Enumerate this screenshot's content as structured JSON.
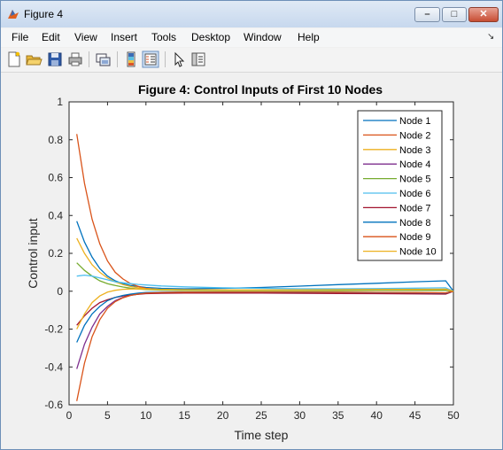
{
  "window": {
    "title": "Figure 4"
  },
  "menu": [
    "File",
    "Edit",
    "View",
    "Insert",
    "Tools",
    "Desktop",
    "Window",
    "Help"
  ],
  "toolbar_icons": [
    "new-figure-icon",
    "open-file-icon",
    "save-icon",
    "print-icon",
    "link-plot-icon",
    "insert-colorbar-icon",
    "insert-legend-icon",
    "edit-plot-pointer-icon",
    "property-inspector-icon"
  ],
  "chart_data": {
    "type": "line",
    "title": "Figure 4: Control Inputs of First 10 Nodes",
    "xlabel": "Time step",
    "ylabel": "Control input",
    "xlim": [
      0,
      50
    ],
    "ylim": [
      -0.6,
      1
    ],
    "xticks": [
      "0",
      "5",
      "10",
      "15",
      "20",
      "25",
      "30",
      "35",
      "40",
      "45",
      "50"
    ],
    "yticks": [
      "-0.6",
      "-0.4",
      "-0.2",
      "0",
      "0.2",
      "0.4",
      "0.6",
      "0.8",
      "1"
    ],
    "grid": false,
    "legend_position": "top-right",
    "x": [
      1,
      2,
      3,
      4,
      5,
      6,
      7,
      8,
      9,
      10,
      12,
      15,
      20,
      25,
      30,
      35,
      40,
      45,
      49,
      50
    ],
    "series": [
      {
        "name": "Node 1",
        "color": "#0072bd",
        "values": [
          0.37,
          0.26,
          0.18,
          0.12,
          0.08,
          0.055,
          0.04,
          0.03,
          0.025,
          0.02,
          0.015,
          0.013,
          0.015,
          0.02,
          0.027,
          0.035,
          0.042,
          0.05,
          0.055,
          0.0
        ]
      },
      {
        "name": "Node 2",
        "color": "#d95319",
        "values": [
          0.83,
          0.57,
          0.38,
          0.25,
          0.16,
          0.1,
          0.065,
          0.04,
          0.025,
          0.015,
          0.008,
          0.005,
          0.004,
          0.004,
          0.004,
          0.005,
          0.006,
          0.008,
          0.01,
          0.0
        ]
      },
      {
        "name": "Node 3",
        "color": "#edb120",
        "values": [
          0.28,
          0.2,
          0.14,
          0.1,
          0.07,
          0.05,
          0.035,
          0.025,
          0.018,
          0.013,
          0.009,
          0.007,
          0.006,
          0.006,
          0.006,
          0.007,
          0.007,
          0.008,
          0.009,
          0.0
        ]
      },
      {
        "name": "Node 4",
        "color": "#7e2f8e",
        "values": [
          -0.41,
          -0.28,
          -0.19,
          -0.12,
          -0.08,
          -0.05,
          -0.033,
          -0.022,
          -0.015,
          -0.01,
          -0.007,
          -0.005,
          -0.005,
          -0.005,
          -0.006,
          -0.007,
          -0.008,
          -0.009,
          -0.01,
          0.0
        ]
      },
      {
        "name": "Node 5",
        "color": "#77ac30",
        "values": [
          0.15,
          0.11,
          0.08,
          0.055,
          0.04,
          0.03,
          0.022,
          0.016,
          0.012,
          0.009,
          0.006,
          0.004,
          0.003,
          0.003,
          0.003,
          0.003,
          0.004,
          0.004,
          0.005,
          0.0
        ]
      },
      {
        "name": "Node 6",
        "color": "#4dbeee",
        "values": [
          0.08,
          0.085,
          0.08,
          0.07,
          0.06,
          0.05,
          0.045,
          0.04,
          0.036,
          0.033,
          0.028,
          0.023,
          0.018,
          0.015,
          0.013,
          0.013,
          0.014,
          0.016,
          0.018,
          0.0
        ]
      },
      {
        "name": "Node 7",
        "color": "#a2142f",
        "values": [
          -0.18,
          -0.13,
          -0.09,
          -0.06,
          -0.045,
          -0.033,
          -0.025,
          -0.02,
          -0.016,
          -0.013,
          -0.011,
          -0.01,
          -0.01,
          -0.01,
          -0.011,
          -0.012,
          -0.013,
          -0.014,
          -0.015,
          0.0
        ]
      },
      {
        "name": "Node 8",
        "color": "#0072bd",
        "values": [
          -0.27,
          -0.18,
          -0.12,
          -0.08,
          -0.05,
          -0.033,
          -0.022,
          -0.015,
          -0.01,
          -0.007,
          -0.005,
          -0.004,
          -0.004,
          -0.004,
          -0.005,
          -0.006,
          -0.007,
          -0.008,
          -0.009,
          0.0
        ]
      },
      {
        "name": "Node 9",
        "color": "#d95319",
        "values": [
          -0.58,
          -0.38,
          -0.24,
          -0.15,
          -0.09,
          -0.055,
          -0.035,
          -0.022,
          -0.015,
          -0.01,
          -0.007,
          -0.005,
          -0.004,
          -0.004,
          -0.004,
          -0.005,
          -0.006,
          -0.007,
          -0.008,
          0.0
        ]
      },
      {
        "name": "Node 10",
        "color": "#edb120",
        "values": [
          -0.2,
          -0.12,
          -0.06,
          -0.025,
          -0.005,
          0.005,
          0.01,
          0.012,
          0.012,
          0.011,
          0.01,
          0.008,
          0.007,
          0.007,
          0.007,
          0.008,
          0.009,
          0.01,
          0.011,
          0.0
        ]
      }
    ]
  }
}
